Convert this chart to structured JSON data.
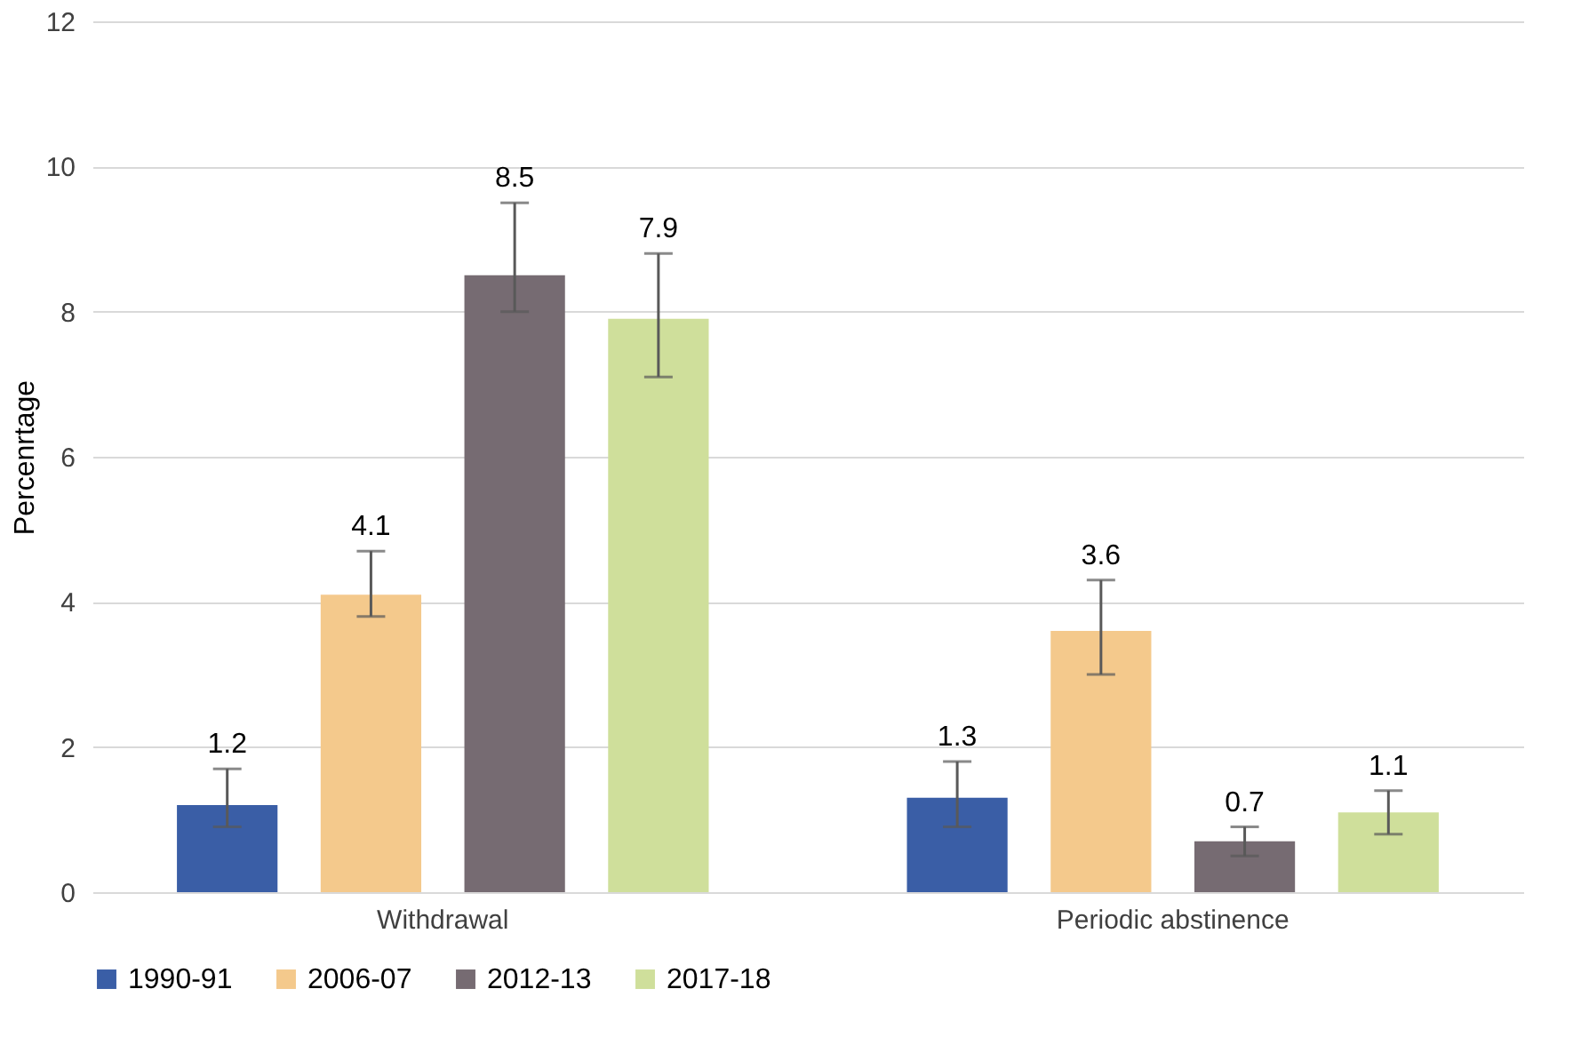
{
  "chart_data": {
    "type": "bar",
    "ylabel": "Percenrtage",
    "categories": [
      "Withdrawal",
      "Periodic abstinence"
    ],
    "series": [
      {
        "name": "1990-91",
        "color": "#3a5ea6",
        "values": [
          1.2,
          1.3
        ],
        "errors": [
          [
            0.9,
            1.7
          ],
          [
            0.9,
            1.8
          ]
        ]
      },
      {
        "name": "2006-07",
        "color": "#f4c98c",
        "values": [
          4.1,
          3.6
        ],
        "errors": [
          [
            3.8,
            4.7
          ],
          [
            3.0,
            4.3
          ]
        ]
      },
      {
        "name": "2012-13",
        "color": "#766b72",
        "values": [
          8.5,
          0.7
        ],
        "errors": [
          [
            8.0,
            9.5
          ],
          [
            0.5,
            0.9
          ]
        ]
      },
      {
        "name": "2017-18",
        "color": "#cfdf9b",
        "values": [
          7.9,
          1.1
        ],
        "errors": [
          [
            7.1,
            8.8
          ],
          [
            0.8,
            1.4
          ]
        ]
      }
    ],
    "ylim": [
      0,
      12
    ],
    "yticks": [
      0,
      2,
      4,
      6,
      8,
      10,
      12
    ],
    "grid": "y",
    "legend": "bottom",
    "data_labels": true
  }
}
